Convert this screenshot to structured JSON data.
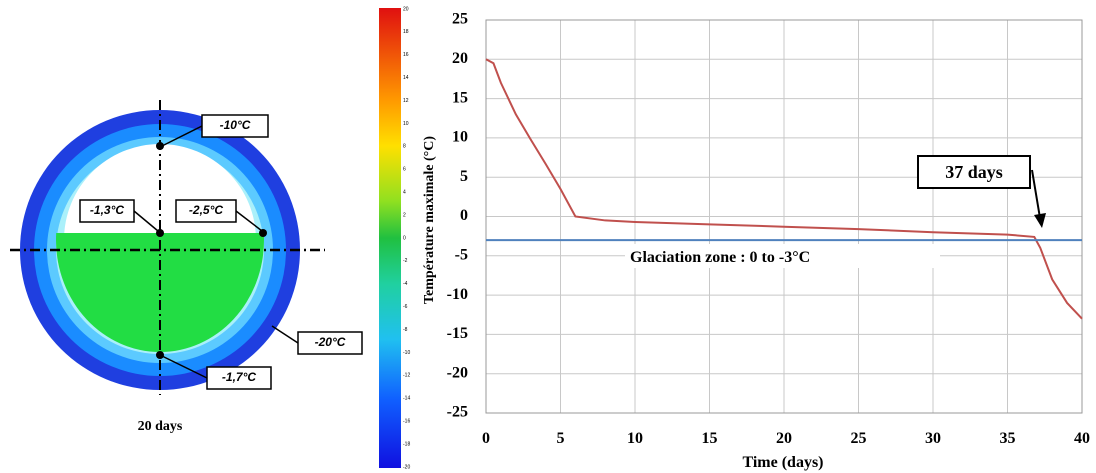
{
  "diagram": {
    "labels": [
      "-10°C",
      "-1,3°C",
      "-2,5°C",
      "-20°C",
      "-1,7°C"
    ],
    "caption": "20 days"
  },
  "colorbar": {
    "ticks": [
      20,
      18,
      16,
      14,
      12,
      10,
      8,
      6,
      4,
      2,
      0,
      -2,
      -4,
      -6,
      -8,
      -10,
      -12,
      -14,
      -16,
      -18,
      -20
    ]
  },
  "chart_data": {
    "type": "line",
    "x_label": "Time (days)",
    "y_label": "Température maximale (°C)",
    "xlim": [
      0,
      40
    ],
    "ylim": [
      -25,
      25
    ],
    "xticks": [
      0,
      5,
      10,
      15,
      20,
      25,
      30,
      35,
      40
    ],
    "yticks": [
      -25,
      -20,
      -15,
      -10,
      -5,
      0,
      5,
      10,
      15,
      20,
      25
    ],
    "grid": true,
    "series": [
      {
        "color": "#c0504d",
        "x": [
          0,
          0.5,
          1,
          2,
          3,
          4,
          5,
          6,
          8,
          10,
          15,
          20,
          25,
          30,
          35,
          36.8,
          37.2,
          38,
          39,
          40
        ],
        "values": [
          20,
          19.5,
          17,
          13,
          9.8,
          6.7,
          3.5,
          0,
          -0.5,
          -0.7,
          -1,
          -1.3,
          -1.6,
          -2,
          -2.3,
          -2.6,
          -4,
          -8,
          -11,
          -13
        ]
      },
      {
        "color": "#4f81bd",
        "x": [
          0,
          40
        ],
        "values": [
          -3,
          -3
        ]
      }
    ],
    "annotations": [
      {
        "text": "37 days"
      },
      {
        "text": "Glaciation zone : 0 to -3°C"
      }
    ]
  }
}
